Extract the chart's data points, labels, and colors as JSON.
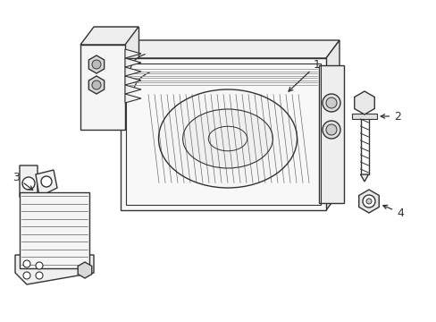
{
  "background_color": "#ffffff",
  "line_color": "#333333",
  "line_width": 1.0,
  "fig_width": 4.89,
  "fig_height": 3.6,
  "dpi": 100
}
